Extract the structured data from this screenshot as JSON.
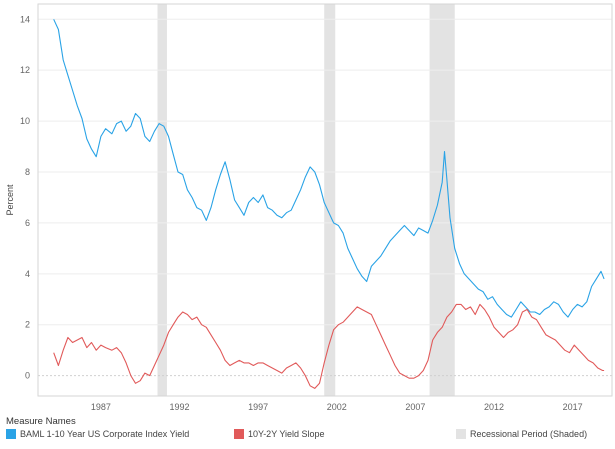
{
  "chart_data": {
    "type": "line",
    "ylabel": "Percent",
    "xlim": [
      1983,
      2019.5
    ],
    "ylim": [
      -0.8,
      14.6
    ],
    "yticks": [
      0,
      2,
      4,
      6,
      8,
      10,
      12,
      14
    ],
    "xticks": [
      1987,
      1992,
      1997,
      2002,
      2007,
      2012,
      2017
    ],
    "grid": "horizontal",
    "legend_position": "bottom",
    "legend_title": "Measure Names",
    "recessions": [
      [
        1990.6,
        1991.2
      ],
      [
        2001.2,
        2001.9
      ],
      [
        2007.9,
        2009.5
      ]
    ],
    "recession_label": "Recessional Period (Shaded)",
    "recession_color": "#e3e3e3",
    "series": [
      {
        "name": "BAML 1-10 Year US Corporate Index Yield",
        "color": "#2aa3e6",
        "x": [
          1984.0,
          1984.3,
          1984.6,
          1984.9,
          1985.2,
          1985.5,
          1985.8,
          1986.1,
          1986.4,
          1986.7,
          1987.0,
          1987.3,
          1987.7,
          1988.0,
          1988.3,
          1988.6,
          1988.9,
          1989.2,
          1989.5,
          1989.8,
          1990.1,
          1990.4,
          1990.7,
          1991.0,
          1991.3,
          1991.6,
          1991.9,
          1992.2,
          1992.5,
          1992.8,
          1993.1,
          1993.4,
          1993.7,
          1994.0,
          1994.3,
          1994.6,
          1994.9,
          1995.2,
          1995.5,
          1995.8,
          1996.1,
          1996.4,
          1996.7,
          1997.0,
          1997.3,
          1997.6,
          1997.9,
          1998.2,
          1998.5,
          1998.8,
          1999.1,
          1999.4,
          1999.7,
          2000.0,
          2000.3,
          2000.6,
          2000.9,
          2001.2,
          2001.5,
          2001.8,
          2002.1,
          2002.4,
          2002.7,
          2003.0,
          2003.3,
          2003.6,
          2003.9,
          2004.2,
          2004.5,
          2004.8,
          2005.1,
          2005.4,
          2005.7,
          2006.0,
          2006.3,
          2006.6,
          2006.9,
          2007.2,
          2007.5,
          2007.8,
          2008.1,
          2008.4,
          2008.7,
          2008.85,
          2009.0,
          2009.2,
          2009.5,
          2009.8,
          2010.1,
          2010.4,
          2010.7,
          2011.0,
          2011.3,
          2011.6,
          2011.9,
          2012.2,
          2012.5,
          2012.8,
          2013.1,
          2013.4,
          2013.7,
          2014.0,
          2014.3,
          2014.6,
          2014.9,
          2015.2,
          2015.5,
          2015.8,
          2016.1,
          2016.4,
          2016.7,
          2017.0,
          2017.3,
          2017.6,
          2017.9,
          2018.2,
          2018.5,
          2018.8,
          2019.0
        ],
        "y": [
          14.0,
          13.6,
          12.4,
          11.8,
          11.2,
          10.6,
          10.1,
          9.3,
          8.9,
          8.6,
          9.4,
          9.7,
          9.5,
          9.9,
          10.0,
          9.6,
          9.8,
          10.3,
          10.1,
          9.4,
          9.2,
          9.6,
          9.9,
          9.8,
          9.4,
          8.7,
          8.0,
          7.9,
          7.3,
          7.0,
          6.6,
          6.5,
          6.1,
          6.6,
          7.3,
          7.9,
          8.4,
          7.7,
          6.9,
          6.6,
          6.3,
          6.8,
          7.0,
          6.8,
          7.1,
          6.6,
          6.5,
          6.3,
          6.2,
          6.4,
          6.5,
          6.9,
          7.3,
          7.8,
          8.2,
          8.0,
          7.5,
          6.8,
          6.4,
          6.0,
          5.9,
          5.6,
          5.0,
          4.6,
          4.2,
          3.9,
          3.7,
          4.3,
          4.5,
          4.7,
          5.0,
          5.3,
          5.5,
          5.7,
          5.9,
          5.7,
          5.5,
          5.8,
          5.7,
          5.6,
          6.1,
          6.7,
          7.6,
          8.8,
          7.7,
          6.2,
          5.0,
          4.4,
          4.0,
          3.8,
          3.6,
          3.4,
          3.3,
          3.0,
          3.1,
          2.8,
          2.6,
          2.4,
          2.3,
          2.6,
          2.9,
          2.7,
          2.5,
          2.5,
          2.4,
          2.6,
          2.7,
          2.9,
          2.8,
          2.5,
          2.3,
          2.6,
          2.8,
          2.7,
          2.9,
          3.5,
          3.8,
          4.1,
          3.8
        ]
      },
      {
        "name": "10Y-2Y Yield Slope",
        "color": "#e15a5a",
        "x": [
          1984.0,
          1984.3,
          1984.6,
          1984.9,
          1985.2,
          1985.5,
          1985.8,
          1986.1,
          1986.4,
          1986.7,
          1987.0,
          1987.3,
          1987.7,
          1988.0,
          1988.3,
          1988.6,
          1988.9,
          1989.2,
          1989.5,
          1989.8,
          1990.1,
          1990.4,
          1990.7,
          1991.0,
          1991.3,
          1991.6,
          1991.9,
          1992.2,
          1992.5,
          1992.8,
          1993.1,
          1993.4,
          1993.7,
          1994.0,
          1994.3,
          1994.6,
          1994.9,
          1995.2,
          1995.5,
          1995.8,
          1996.1,
          1996.4,
          1996.7,
          1997.0,
          1997.3,
          1997.6,
          1997.9,
          1998.2,
          1998.5,
          1998.8,
          1999.1,
          1999.4,
          1999.7,
          2000.0,
          2000.3,
          2000.6,
          2000.9,
          2001.2,
          2001.5,
          2001.8,
          2002.1,
          2002.4,
          2002.7,
          2003.0,
          2003.3,
          2003.6,
          2003.9,
          2004.2,
          2004.5,
          2004.8,
          2005.1,
          2005.4,
          2005.7,
          2006.0,
          2006.3,
          2006.6,
          2006.9,
          2007.2,
          2007.5,
          2007.8,
          2008.1,
          2008.4,
          2008.7,
          2009.0,
          2009.3,
          2009.6,
          2009.9,
          2010.2,
          2010.5,
          2010.8,
          2011.1,
          2011.4,
          2011.7,
          2012.0,
          2012.3,
          2012.6,
          2012.9,
          2013.2,
          2013.5,
          2013.8,
          2014.1,
          2014.4,
          2014.7,
          2015.0,
          2015.3,
          2015.6,
          2015.9,
          2016.2,
          2016.5,
          2016.8,
          2017.1,
          2017.4,
          2017.7,
          2018.0,
          2018.3,
          2018.6,
          2018.9,
          2019.0
        ],
        "y": [
          0.9,
          0.4,
          1.0,
          1.5,
          1.3,
          1.4,
          1.5,
          1.1,
          1.3,
          1.0,
          1.2,
          1.1,
          1.0,
          1.1,
          0.9,
          0.5,
          0.0,
          -0.3,
          -0.2,
          0.1,
          0.0,
          0.4,
          0.8,
          1.2,
          1.7,
          2.0,
          2.3,
          2.5,
          2.4,
          2.2,
          2.3,
          2.0,
          1.9,
          1.6,
          1.3,
          1.0,
          0.6,
          0.4,
          0.5,
          0.6,
          0.5,
          0.5,
          0.4,
          0.5,
          0.5,
          0.4,
          0.3,
          0.2,
          0.1,
          0.3,
          0.4,
          0.5,
          0.3,
          0.0,
          -0.4,
          -0.5,
          -0.3,
          0.5,
          1.2,
          1.8,
          2.0,
          2.1,
          2.3,
          2.5,
          2.7,
          2.6,
          2.5,
          2.4,
          2.0,
          1.6,
          1.2,
          0.8,
          0.4,
          0.1,
          0.0,
          -0.1,
          -0.1,
          0.0,
          0.2,
          0.6,
          1.4,
          1.7,
          1.9,
          2.3,
          2.5,
          2.8,
          2.8,
          2.6,
          2.7,
          2.4,
          2.8,
          2.6,
          2.3,
          1.9,
          1.7,
          1.5,
          1.7,
          1.8,
          2.0,
          2.5,
          2.6,
          2.3,
          2.2,
          1.9,
          1.6,
          1.5,
          1.4,
          1.2,
          1.0,
          0.9,
          1.2,
          1.0,
          0.8,
          0.6,
          0.5,
          0.3,
          0.2,
          0.2
        ]
      }
    ]
  }
}
